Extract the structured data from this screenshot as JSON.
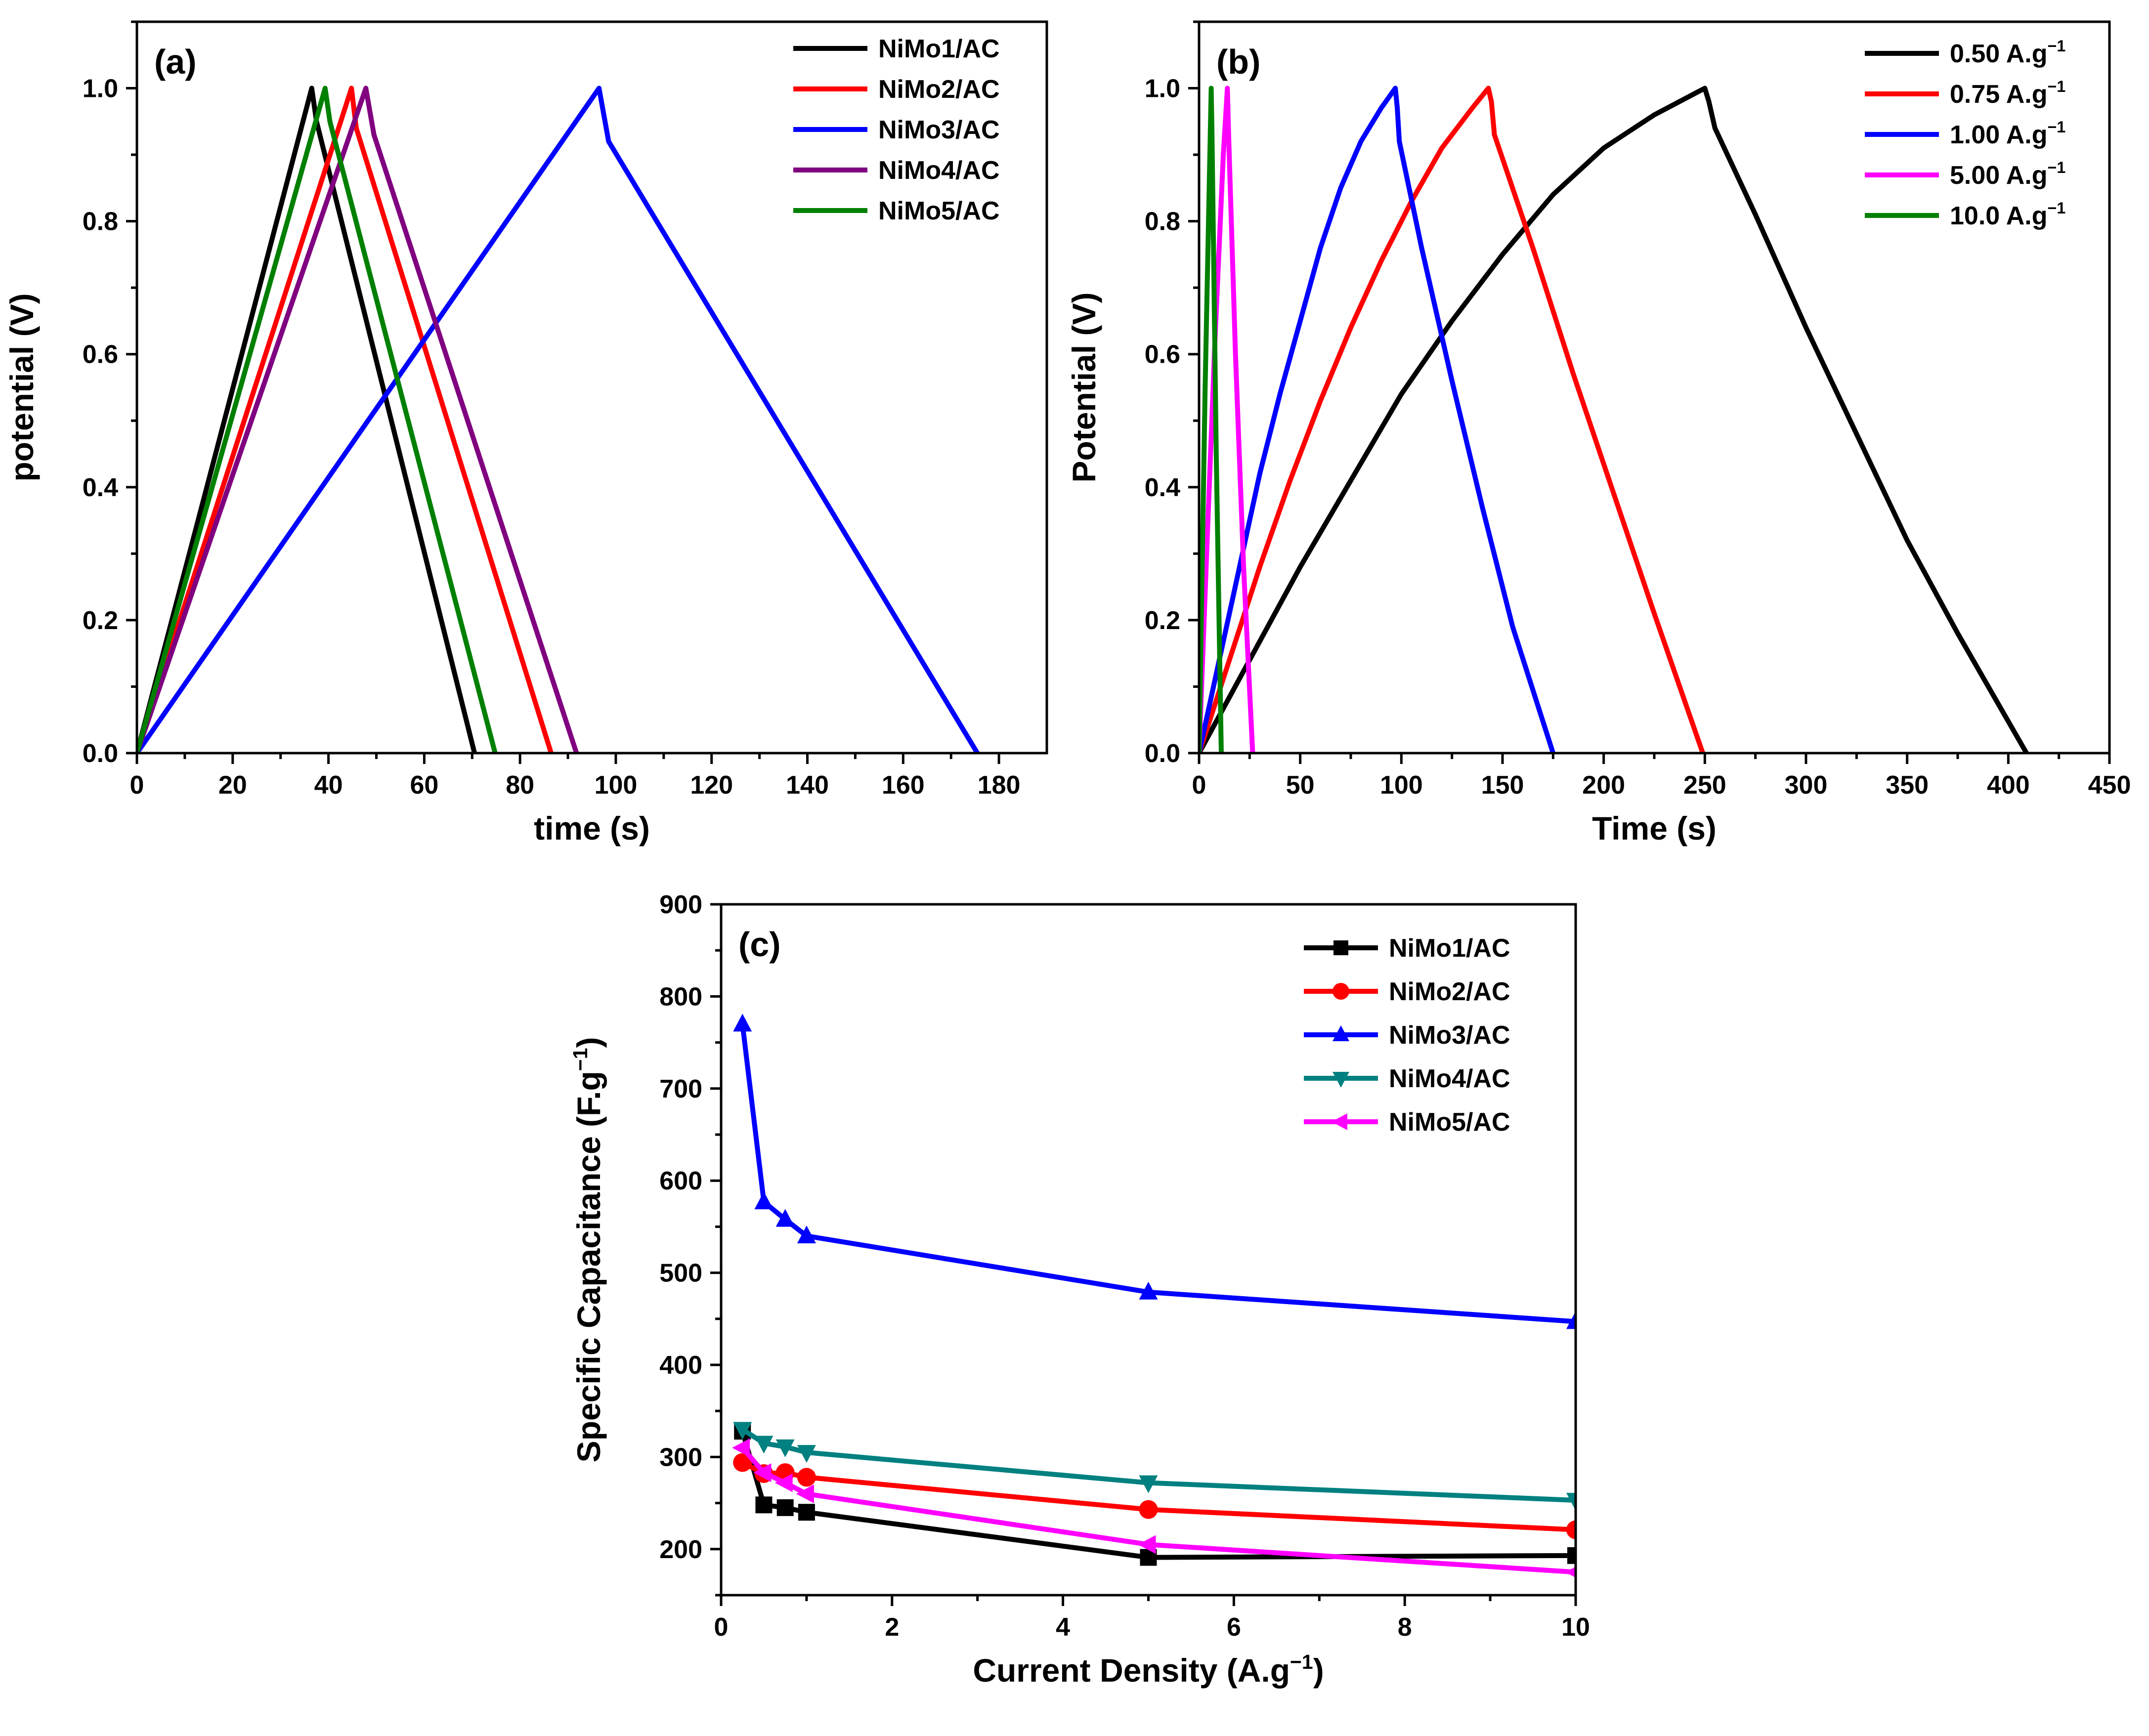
{
  "colors": {
    "black": "#000000",
    "red": "#ff0000",
    "blue": "#0000ff",
    "purple": "#800080",
    "green": "#008000",
    "magenta": "#ff00ff",
    "teal": "#008080"
  },
  "chart_data": [
    {
      "type": "line",
      "panel_label": "(a)",
      "title": "",
      "xlabel": "time (s)",
      "ylabel": "potential (V)",
      "xlim": [
        0,
        190
      ],
      "ylim": [
        0,
        1.1
      ],
      "xticks": [
        0,
        20,
        40,
        60,
        80,
        100,
        120,
        140,
        160,
        180
      ],
      "yticks": [
        0.0,
        0.2,
        0.4,
        0.6,
        0.8,
        1.0
      ],
      "xtick_labels": [
        "0",
        "20",
        "40",
        "60",
        "80",
        "100",
        "120",
        "140",
        "160",
        "180"
      ],
      "ytick_labels": [
        "0.0",
        "0.2",
        "0.4",
        "0.6",
        "0.8",
        "1.0"
      ],
      "legend": "top-right",
      "grid": false,
      "series": [
        {
          "name": "NiMo1/AC",
          "color": "#000000",
          "x": [
            0,
            36.5,
            37.5,
            70.5
          ],
          "y": [
            0.0,
            1.0,
            0.95,
            0.0
          ]
        },
        {
          "name": "NiMo2/AC",
          "color": "#ff0000",
          "x": [
            0,
            44.8,
            45.8,
            86.5
          ],
          "y": [
            0.0,
            1.0,
            0.94,
            0.0
          ]
        },
        {
          "name": "NiMo3/AC",
          "color": "#0000ff",
          "x": [
            0,
            96.5,
            98.5,
            175.5
          ],
          "y": [
            0.0,
            1.0,
            0.92,
            0.0
          ]
        },
        {
          "name": "NiMo4/AC",
          "color": "#800080",
          "x": [
            0,
            47.8,
            49.5,
            91.8
          ],
          "y": [
            0.0,
            1.0,
            0.93,
            0.0
          ]
        },
        {
          "name": "NiMo5/AC",
          "color": "#008000",
          "x": [
            0,
            39.3,
            40.3,
            74.8
          ],
          "y": [
            0.0,
            1.0,
            0.95,
            0.0
          ]
        }
      ]
    },
    {
      "type": "line",
      "panel_label": "(b)",
      "title": "",
      "xlabel": "Time (s)",
      "ylabel": "Potential (V)",
      "xlim": [
        0,
        450
      ],
      "ylim": [
        0,
        1.1
      ],
      "xticks": [
        0,
        50,
        100,
        150,
        200,
        250,
        300,
        350,
        400,
        450
      ],
      "yticks": [
        0.0,
        0.2,
        0.4,
        0.6,
        0.8,
        1.0
      ],
      "xtick_labels": [
        "0",
        "50",
        "100",
        "150",
        "200",
        "250",
        "300",
        "350",
        "400",
        "450"
      ],
      "ytick_labels": [
        "0.0",
        "0.2",
        "0.4",
        "0.6",
        "0.8",
        "1.0"
      ],
      "legend": "top-right",
      "grid": false,
      "series": [
        {
          "name": "0.50 A.g",
          "name_sup": "−1",
          "color": "#000000",
          "x": [
            0,
            25,
            50,
            75,
            100,
            125,
            150,
            175,
            200,
            225,
            250,
            252,
            255,
            275,
            300,
            325,
            350,
            375,
            409
          ],
          "y": [
            0.0,
            0.14,
            0.28,
            0.41,
            0.54,
            0.65,
            0.75,
            0.84,
            0.91,
            0.96,
            1.0,
            0.98,
            0.94,
            0.81,
            0.64,
            0.48,
            0.32,
            0.18,
            0.0
          ]
        },
        {
          "name": "0.75 A.g",
          "name_sup": "−1",
          "color": "#ff0000",
          "x": [
            0,
            15,
            30,
            45,
            60,
            75,
            90,
            105,
            120,
            135,
            143,
            144.5,
            146,
            165,
            185,
            205,
            225,
            249
          ],
          "y": [
            0.0,
            0.14,
            0.28,
            0.41,
            0.53,
            0.64,
            0.74,
            0.83,
            0.91,
            0.97,
            1.0,
            0.98,
            0.93,
            0.76,
            0.57,
            0.39,
            0.21,
            0.0
          ]
        },
        {
          "name": "1.00 A.g",
          "name_sup": "−1",
          "color": "#0000ff",
          "x": [
            0,
            10,
            20,
            30,
            40,
            50,
            60,
            70,
            80,
            90,
            97,
            98,
            99,
            110,
            125,
            140,
            155,
            175
          ],
          "y": [
            0.0,
            0.14,
            0.28,
            0.42,
            0.54,
            0.65,
            0.76,
            0.85,
            0.92,
            0.97,
            1.0,
            0.97,
            0.92,
            0.76,
            0.56,
            0.37,
            0.19,
            0.0
          ]
        },
        {
          "name": "5.00 A.g",
          "name_sup": "−1",
          "color": "#ff00ff",
          "x": [
            0,
            4,
            8,
            12,
            14,
            14.6,
            18,
            22,
            26.5
          ],
          "y": [
            0.0,
            0.32,
            0.63,
            0.9,
            1.0,
            0.93,
            0.6,
            0.28,
            0.0
          ]
        },
        {
          "name": "10.0 A.g",
          "name_sup": "−1",
          "color": "#008000",
          "x": [
            0,
            3,
            6,
            6.4,
            8.5,
            11
          ],
          "y": [
            0.0,
            0.55,
            1.0,
            0.93,
            0.45,
            0.0
          ]
        }
      ]
    },
    {
      "type": "line",
      "panel_label": "(c)",
      "title": "",
      "xlabel": "Current Density (A.g",
      "xlabel_sup": "−1",
      "xlabel_tail": ")",
      "ylabel": "Specific Capacitance (F.g",
      "ylabel_sup": "−1",
      "ylabel_tail": ")",
      "xlim": [
        0,
        10
      ],
      "ylim": [
        150,
        900
      ],
      "xticks": [
        0,
        2,
        4,
        6,
        8,
        10
      ],
      "yticks": [
        200,
        300,
        400,
        500,
        600,
        700,
        800,
        900
      ],
      "xtick_labels": [
        "0",
        "2",
        "4",
        "6",
        "8",
        "10"
      ],
      "ytick_labels": [
        "200",
        "300",
        "400",
        "500",
        "600",
        "700",
        "800",
        "900"
      ],
      "legend": "top-right",
      "grid": false,
      "x": [
        0.25,
        0.5,
        0.75,
        1,
        5,
        10
      ],
      "series": [
        {
          "name": "NiMo1/AC",
          "marker": "square",
          "color": "#000000",
          "values": [
            328,
            248,
            245,
            240,
            191,
            193
          ]
        },
        {
          "name": "NiMo2/AC",
          "marker": "circle",
          "color": "#ff0000",
          "values": [
            294,
            282,
            283,
            278,
            243,
            221
          ]
        },
        {
          "name": "NiMo3/AC",
          "marker": "triangle-up",
          "color": "#0000ff",
          "values": [
            770,
            577,
            558,
            540,
            479,
            447
          ]
        },
        {
          "name": "NiMo4/AC",
          "marker": "triangle-down",
          "color": "#008080",
          "values": [
            330,
            315,
            311,
            305,
            272,
            253
          ]
        },
        {
          "name": "NiMo5/AC",
          "marker": "triangle-left",
          "color": "#ff00ff",
          "values": [
            310,
            283,
            272,
            260,
            205,
            175
          ]
        }
      ]
    }
  ]
}
